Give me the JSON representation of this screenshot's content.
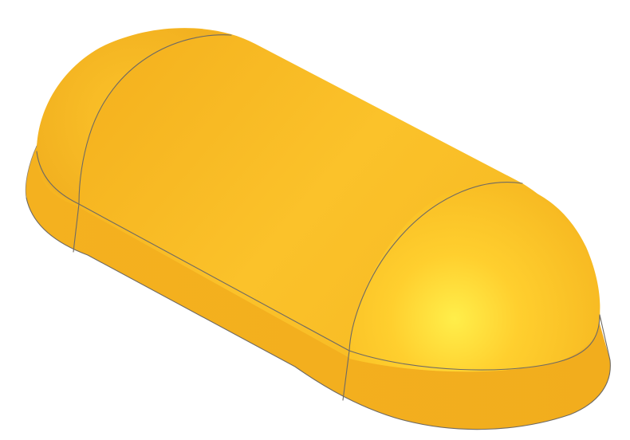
{
  "scene": {
    "object": "rounded-capsule-solid",
    "colors": {
      "base": "#f6b81f",
      "highlight": "#ffee4a",
      "shade": "#e39c14",
      "edge": "#6f6a63",
      "background": "#ffffff"
    }
  }
}
